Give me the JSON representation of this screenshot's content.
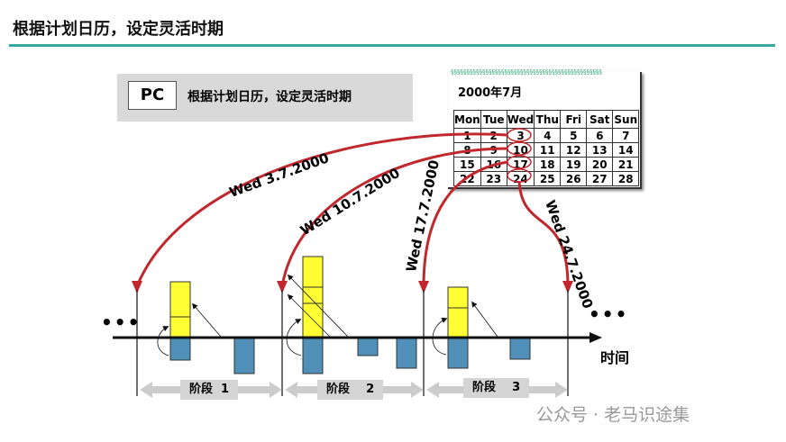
{
  "title": "根据计划日历，设定灵活时期",
  "pc_box": {
    "tag": "PC",
    "text": "根据计划日历，设定灵活时期"
  },
  "calendar": {
    "month": "2000年7月",
    "headers": [
      "Mon",
      "Tue",
      "Wed",
      "Thu",
      "Fri",
      "Sat",
      "Sun"
    ],
    "rows": [
      [
        "1",
        "2",
        "3",
        "4",
        "5",
        "6",
        "7"
      ],
      [
        "8",
        "9",
        "10",
        "11",
        "12",
        "13",
        "14"
      ],
      [
        "15",
        "16",
        "17",
        "18",
        "19",
        "20",
        "21"
      ],
      [
        "22",
        "23",
        "24",
        "25",
        "26",
        "27",
        "28"
      ]
    ],
    "circled": [
      "3",
      "10",
      "17",
      "24"
    ]
  },
  "dates": [
    "Wed 3.7.2000",
    "Wed 10.7.2000",
    "Wed 17.7.2000",
    "Wed 24.7.2000"
  ],
  "stages": [
    "阶段  1",
    "阶段    2",
    "阶段    3"
  ],
  "axis_label": "时间",
  "ellipsis": "•••",
  "watermark": "公众号 · 老马识途集",
  "colors": {
    "accent": "#3aa6a0",
    "arrow": "#c0282e",
    "supply": "#ffff33",
    "demand": "#4f8fb8"
  }
}
